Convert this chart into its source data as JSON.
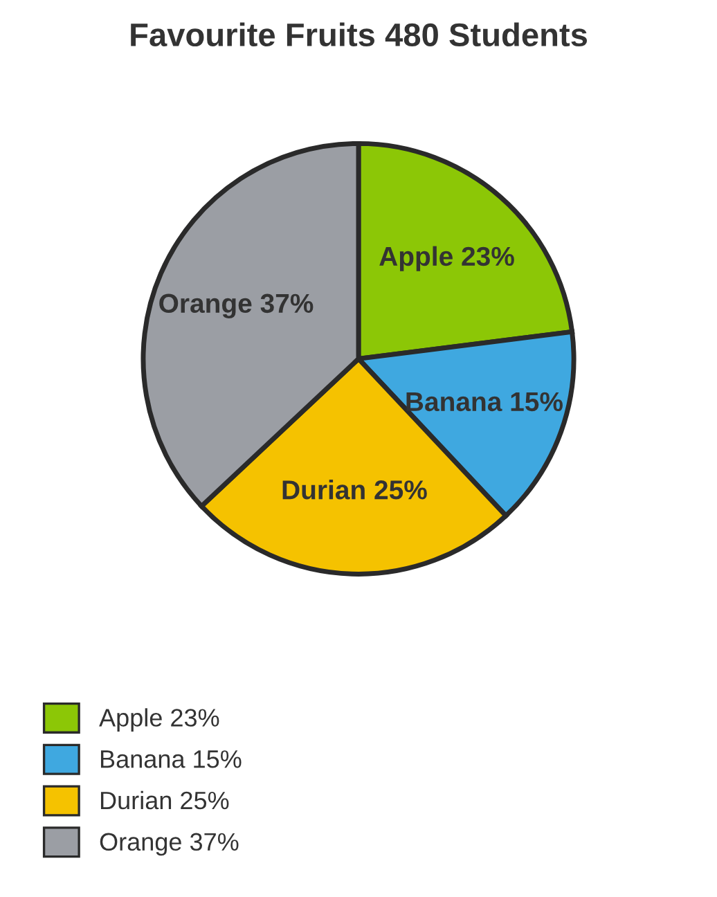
{
  "chart_data": {
    "type": "pie",
    "title": "Favourite Fruits 480 Students",
    "categories": [
      "Apple",
      "Banana",
      "Durian",
      "Orange"
    ],
    "values": [
      23,
      15,
      25,
      37
    ],
    "value_labels": [
      "23%",
      "15%",
      "25%",
      "37%"
    ],
    "colors": [
      "#8cc706",
      "#3fa8e0",
      "#f5c200",
      "#9b9ea4"
    ],
    "legend": "bottom left"
  }
}
